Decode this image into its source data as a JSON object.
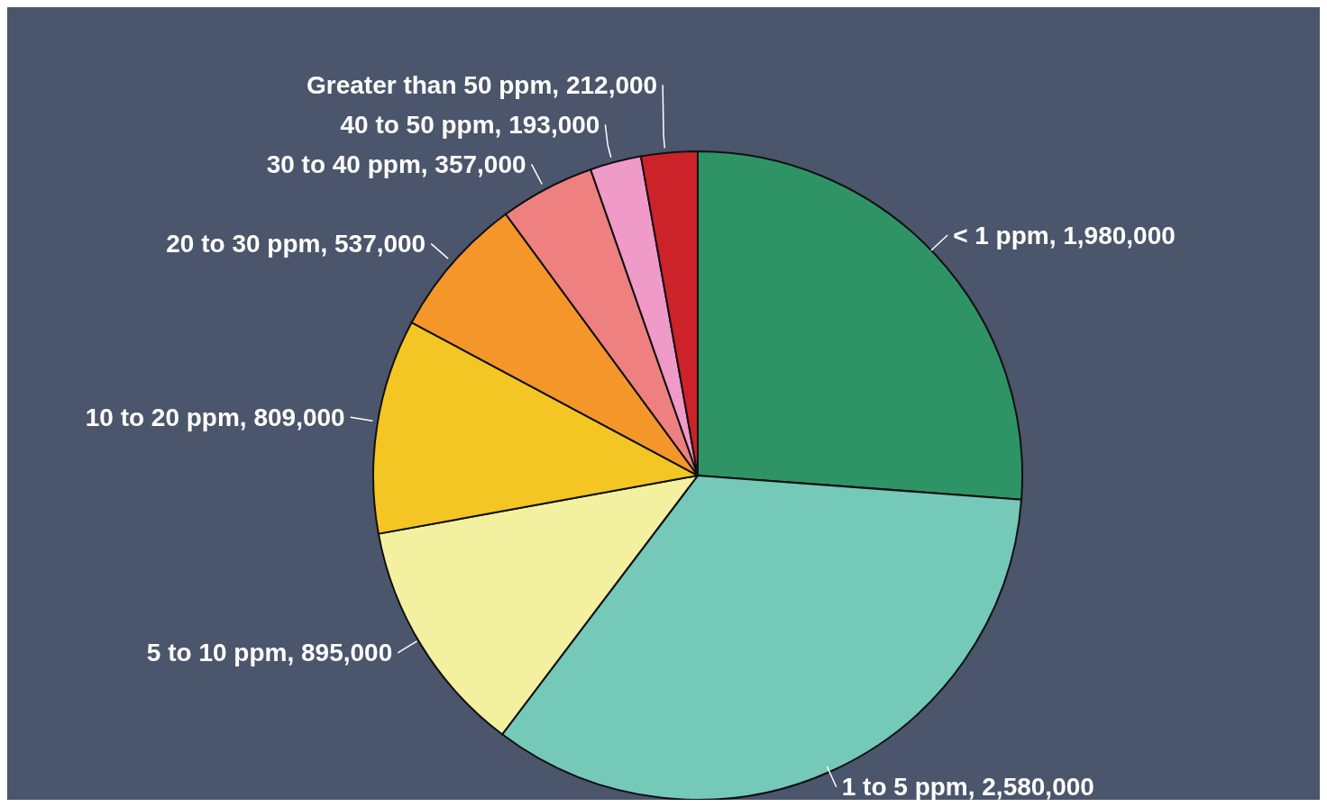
{
  "chart_data": {
    "type": "pie",
    "categories": [
      "< 1 ppm",
      "1 to 5 ppm",
      "5 to 10 ppm",
      "10 to 20 ppm",
      "20 to 30 ppm",
      "30 to 40 ppm",
      "40 to 50 ppm",
      "Greater than 50 ppm"
    ],
    "values": [
      1980000,
      2580000,
      895000,
      809000,
      537000,
      357000,
      193000,
      212000
    ],
    "colors": [
      "#2e9466",
      "#74c9b9",
      "#f3f0a0",
      "#f4c623",
      "#f4962a",
      "#ef8080",
      "#f09ac8",
      "#cc2229"
    ],
    "value_labels": [
      "1,980,000",
      "2,580,000",
      "895,000",
      "809,000",
      "537,000",
      "357,000",
      "193,000",
      "212,000"
    ]
  }
}
